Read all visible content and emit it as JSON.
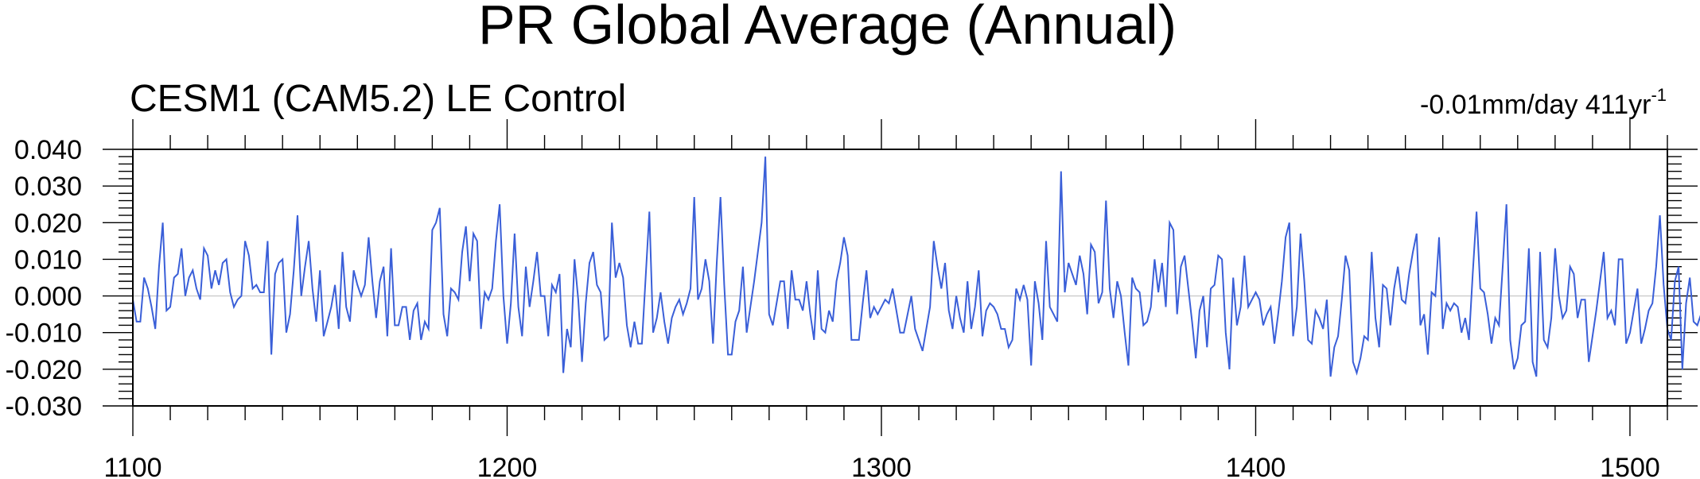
{
  "chart_data": {
    "type": "line",
    "title": "PR Global Average (Annual)",
    "subtitle": "CESM1 (CAM5.2) LE Control",
    "trend_annotation": {
      "text": "-0.01mm/day 411yr",
      "superscript": "-1"
    },
    "xlabel": "",
    "ylabel": "",
    "xlim": [
      1100,
      1510
    ],
    "ylim": [
      -0.03,
      0.04
    ],
    "x_ticks": [
      1100,
      1200,
      1300,
      1400,
      1500
    ],
    "x_tick_labels": [
      "1100",
      "1200",
      "1300",
      "1400",
      "1500"
    ],
    "y_ticks": [
      -0.03,
      -0.02,
      -0.01,
      0,
      0.01,
      0.02,
      0.03,
      0.04
    ],
    "y_tick_labels": [
      "-0.030",
      "-0.020",
      "-0.010",
      "0.000",
      "0.010",
      "0.020",
      "0.030",
      "0.040"
    ],
    "zero_line": true,
    "grid": false,
    "line_color": "#3a5fd8",
    "series": [
      {
        "x_start": 1100,
        "x_step": 1,
        "values": [
          -0.001,
          -0.007,
          -0.007,
          0.005,
          0.002,
          -0.003,
          -0.009,
          0.008,
          0.02,
          -0.004,
          -0.003,
          0.005,
          0.006,
          0.013,
          0.0,
          0.005,
          0.007,
          0.002,
          -0.001,
          0.013,
          0.011,
          0.002,
          0.007,
          0.003,
          0.009,
          0.01,
          0.001,
          -0.003,
          -0.001,
          0.0,
          0.015,
          0.011,
          0.002,
          0.003,
          0.001,
          0.001,
          0.015,
          -0.016,
          0.006,
          0.009,
          0.01,
          -0.01,
          -0.005,
          0.007,
          0.022,
          0.0,
          0.008,
          0.015,
          0.002,
          -0.007,
          0.007,
          -0.011,
          -0.007,
          -0.003,
          0.003,
          -0.009,
          0.012,
          -0.003,
          -0.007,
          0.007,
          0.003,
          0.0,
          0.003,
          0.016,
          0.004,
          -0.006,
          0.004,
          0.008,
          -0.011,
          0.013,
          -0.008,
          -0.008,
          -0.003,
          -0.003,
          -0.012,
          -0.004,
          -0.002,
          -0.012,
          -0.007,
          -0.009,
          0.018,
          0.02,
          0.024,
          -0.005,
          -0.011,
          0.002,
          0.001,
          -0.001,
          0.012,
          0.019,
          0.004,
          0.017,
          0.015,
          -0.009,
          0.001,
          -0.001,
          0.002,
          0.015,
          0.025,
          0.0,
          -0.013,
          -0.002,
          0.017,
          -0.003,
          -0.011,
          0.008,
          -0.003,
          0.004,
          0.012,
          0.0,
          0.0,
          -0.011,
          0.003,
          0.001,
          0.006,
          -0.021,
          -0.009,
          -0.014,
          0.01,
          -0.001,
          -0.018,
          -0.002,
          0.009,
          0.012,
          0.003,
          0.001,
          -0.012,
          -0.011,
          0.02,
          0.005,
          0.009,
          0.005,
          -0.008,
          -0.014,
          -0.007,
          -0.013,
          -0.013,
          0.005,
          0.023,
          -0.01,
          -0.006,
          0.001,
          -0.007,
          -0.013,
          -0.006,
          -0.003,
          -0.001,
          -0.005,
          -0.002,
          0.002,
          0.027,
          -0.001,
          0.002,
          0.01,
          0.004,
          -0.013,
          0.009,
          0.027,
          0.003,
          -0.016,
          -0.016,
          -0.007,
          -0.004,
          0.008,
          -0.01,
          -0.003,
          0.004,
          0.012,
          0.02,
          0.038,
          -0.005,
          -0.008,
          -0.002,
          0.004,
          0.004,
          -0.009,
          0.007,
          -0.001,
          -0.001,
          -0.004,
          0.004,
          -0.005,
          -0.012,
          0.007,
          -0.009,
          -0.01,
          -0.004,
          -0.007,
          0.004,
          0.009,
          0.016,
          0.011,
          -0.012,
          -0.012,
          -0.012,
          -0.002,
          0.007,
          -0.006,
          -0.003,
          -0.005,
          -0.003,
          -0.001,
          -0.002,
          0.002,
          -0.004,
          -0.01,
          -0.01,
          -0.005,
          0.0,
          -0.009,
          -0.012,
          -0.015,
          -0.009,
          -0.003,
          0.015,
          0.008,
          0.002,
          0.009,
          -0.004,
          -0.009,
          0.0,
          -0.006,
          -0.01,
          0.004,
          -0.009,
          -0.003,
          0.007,
          -0.011,
          -0.004,
          -0.002,
          -0.003,
          -0.005,
          -0.009,
          -0.009,
          -0.014,
          -0.012,
          0.002,
          -0.001,
          0.003,
          -0.001,
          -0.019,
          0.004,
          -0.002,
          -0.012,
          0.015,
          -0.003,
          -0.005,
          -0.007,
          0.034,
          0.001,
          0.009,
          0.006,
          0.003,
          0.011,
          0.006,
          -0.005,
          0.014,
          0.012,
          -0.002,
          0.001,
          0.026,
          0.002,
          -0.006,
          0.004,
          0.0,
          -0.01,
          -0.019,
          0.005,
          0.002,
          0.001,
          -0.008,
          -0.007,
          -0.003,
          0.01,
          0.001,
          0.009,
          -0.003,
          0.02,
          0.018,
          -0.005,
          0.008,
          0.011,
          0.002,
          -0.007,
          -0.017,
          -0.004,
          0.0,
          -0.014,
          0.002,
          0.003,
          0.011,
          0.01,
          -0.01,
          -0.02,
          0.005,
          -0.008,
          -0.003,
          0.011,
          -0.003,
          -0.001,
          0.001,
          -0.001,
          -0.008,
          -0.005,
          -0.003,
          -0.013,
          -0.005,
          0.004,
          0.016,
          0.02,
          -0.011,
          -0.003,
          0.017,
          0.004,
          -0.012,
          -0.013,
          -0.004,
          -0.006,
          -0.009,
          -0.001,
          -0.022,
          -0.014,
          -0.011,
          -0.001,
          0.011,
          0.007,
          -0.018,
          -0.021,
          -0.017,
          -0.011,
          -0.012,
          0.012,
          -0.006,
          -0.014,
          0.003,
          0.002,
          -0.008,
          0.002,
          0.008,
          -0.001,
          -0.002,
          0.006,
          0.012,
          0.017,
          -0.008,
          -0.005,
          -0.016,
          0.001,
          0.0,
          0.016,
          -0.009,
          -0.002,
          -0.004,
          -0.002,
          -0.003,
          -0.01,
          -0.006,
          -0.012,
          0.006,
          0.023,
          0.002,
          0.001,
          -0.005,
          -0.013,
          -0.006,
          -0.008,
          0.008,
          0.025,
          -0.012,
          -0.02,
          -0.017,
          -0.008,
          -0.007,
          0.013,
          -0.018,
          -0.022,
          0.012,
          -0.012,
          -0.014,
          -0.006,
          0.013,
          0.0,
          -0.006,
          -0.004,
          0.008,
          0.006,
          -0.006,
          -0.001,
          -0.001,
          -0.018,
          -0.011,
          -0.004,
          0.004,
          0.012,
          -0.006,
          -0.004,
          -0.008,
          0.01,
          0.01,
          -0.013,
          -0.01,
          -0.004,
          0.002,
          -0.013,
          -0.009,
          -0.004,
          -0.002,
          0.008,
          0.022,
          0.003,
          -0.009,
          -0.012,
          0.004,
          0.008,
          -0.02,
          -0.002,
          0.005,
          -0.007,
          -0.008,
          -0.005,
          0.003,
          -0.003,
          0.002
        ]
      }
    ]
  }
}
